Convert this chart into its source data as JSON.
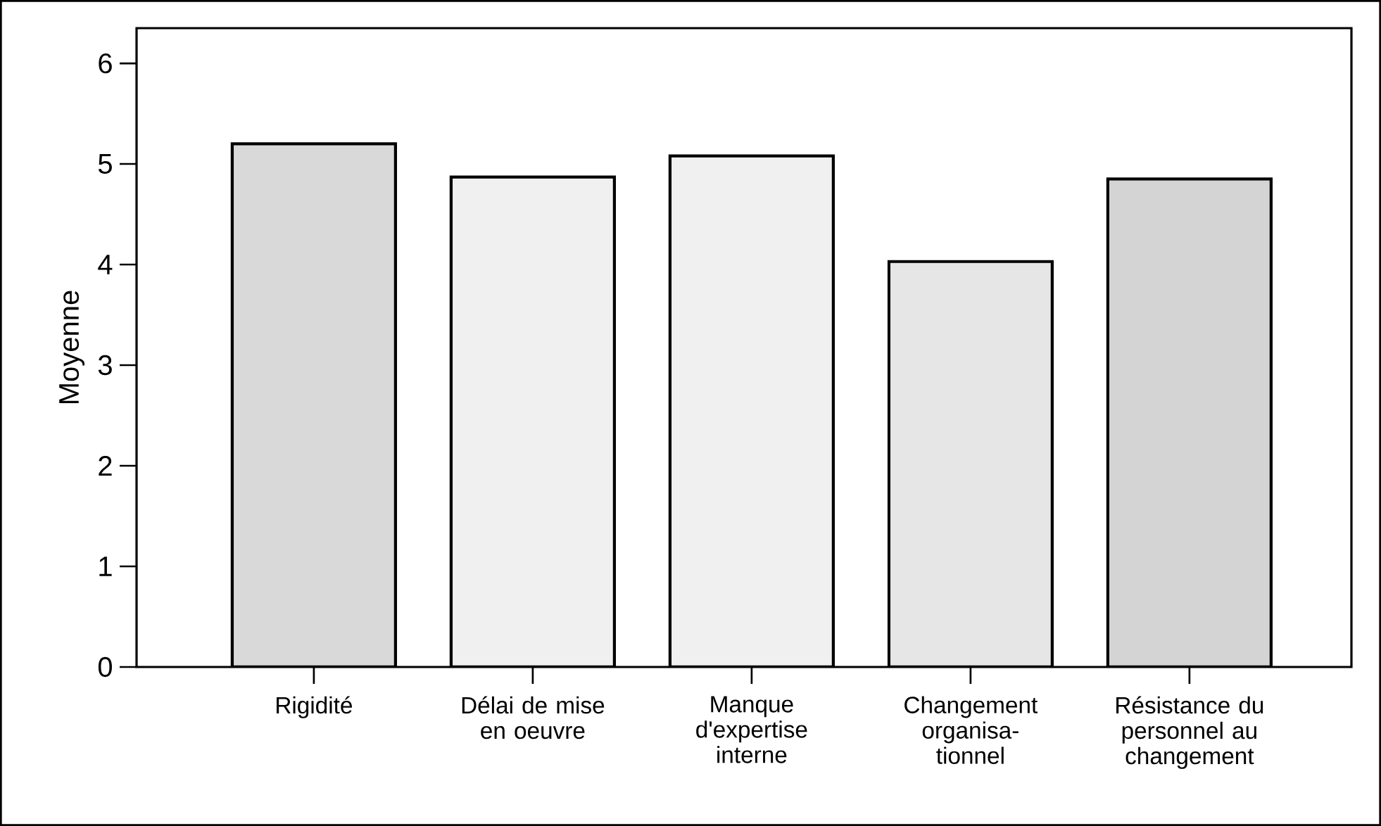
{
  "chart_data": {
    "type": "bar",
    "ylabel": "Moyenne",
    "categories": [
      "Rigidité",
      "Délai de mise en oeuvre",
      "Manque d'expertise interne",
      "Changement organisa-tionnel",
      "Résistance du personnel au changement"
    ],
    "values": [
      5.2,
      4.87,
      5.08,
      4.03,
      4.85
    ],
    "colors": [
      "#d9d9d9",
      "#f0f0f0",
      "#f0f0f0",
      "#e6e6e6",
      "#d4d4d4"
    ],
    "ylim": [
      0,
      6.35
    ],
    "yticks": [
      0,
      1,
      2,
      3,
      4,
      5,
      6
    ]
  }
}
